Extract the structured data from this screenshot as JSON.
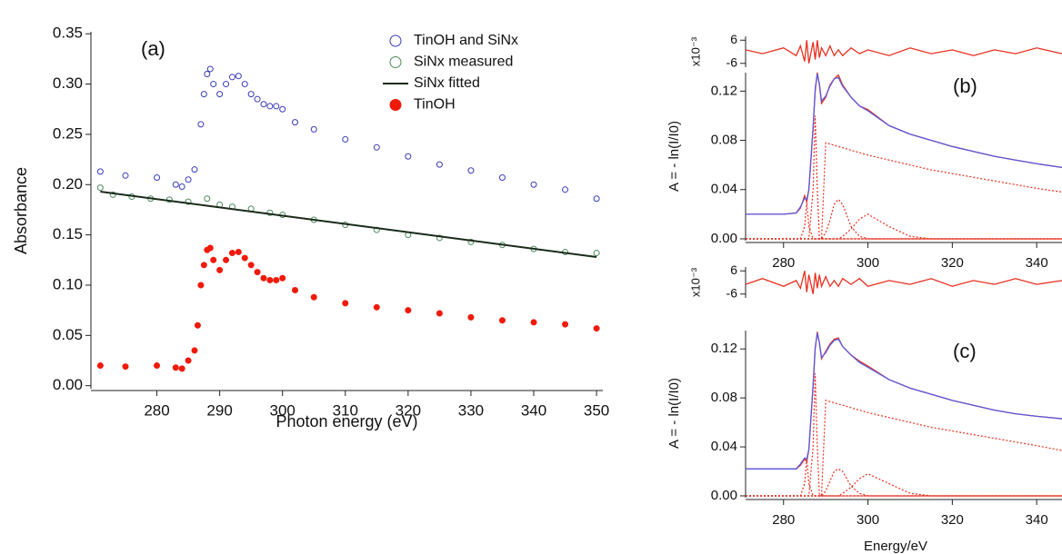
{
  "chart_data": [
    {
      "type": "scatter",
      "title": "(a)",
      "xlabel": "Photon energy (eV)",
      "ylabel": "Absorbance",
      "xlim": [
        269.5,
        351
      ],
      "ylim": [
        -0.003,
        0.352
      ],
      "xticks": [
        280,
        290,
        300,
        310,
        320,
        330,
        340,
        350
      ],
      "yticks": [
        {
          "value": 0,
          "label": "0.00"
        },
        0.05,
        {
          "value": 0.1,
          "label": "0.10"
        },
        0.15,
        {
          "value": 0.2,
          "label": "0.20"
        },
        0.25,
        {
          "value": 0.3,
          "label": "0.30"
        },
        0.35
      ],
      "legend": "top-right",
      "series": [
        {
          "name": "TinOH and SiNx",
          "color": "#3a3ab8",
          "marker": "open-circle",
          "x": [
            271,
            275,
            280,
            283,
            284,
            285,
            286,
            287,
            287.5,
            288,
            288.5,
            289,
            290,
            291,
            292,
            293,
            294,
            295,
            296,
            297,
            298,
            299,
            300,
            302,
            305,
            310,
            315,
            320,
            325,
            330,
            335,
            340,
            345,
            350
          ],
          "values": [
            0.213,
            0.209,
            0.207,
            0.2,
            0.198,
            0.205,
            0.215,
            0.26,
            0.29,
            0.31,
            0.315,
            0.3,
            0.29,
            0.3,
            0.307,
            0.308,
            0.3,
            0.29,
            0.285,
            0.28,
            0.278,
            0.278,
            0.275,
            0.262,
            0.255,
            0.245,
            0.237,
            0.228,
            0.22,
            0.214,
            0.207,
            0.2,
            0.195,
            0.186
          ]
        },
        {
          "name": "SiNx measured",
          "color": "#4e8a5e",
          "marker": "open-circle",
          "x": [
            271,
            273,
            276,
            279,
            282,
            285,
            288,
            290,
            292,
            295,
            298,
            300,
            305,
            310,
            315,
            320,
            325,
            330,
            335,
            340,
            345,
            350
          ],
          "values": [
            0.197,
            0.19,
            0.188,
            0.186,
            0.185,
            0.183,
            0.186,
            0.18,
            0.178,
            0.176,
            0.172,
            0.17,
            0.165,
            0.16,
            0.155,
            0.15,
            0.147,
            0.143,
            0.14,
            0.136,
            0.133,
            0.132
          ]
        },
        {
          "name": "SiNx fitted",
          "color": "#1a2a1a",
          "marker": "line",
          "x": [
            271,
            350
          ],
          "values": [
            0.193,
            0.128
          ]
        },
        {
          "name": "TinOH",
          "color": "#f01a0a",
          "marker": "filled-circle",
          "x": [
            271,
            275,
            280,
            283,
            284,
            285,
            286,
            286.5,
            287,
            287.5,
            288,
            288.5,
            289,
            290,
            291,
            292,
            293,
            294,
            295,
            296,
            297,
            298,
            299,
            300,
            302,
            305,
            310,
            315,
            320,
            325,
            330,
            335,
            340,
            345,
            350
          ],
          "values": [
            0.02,
            0.019,
            0.02,
            0.018,
            0.017,
            0.025,
            0.035,
            0.06,
            0.1,
            0.12,
            0.135,
            0.137,
            0.125,
            0.115,
            0.125,
            0.132,
            0.133,
            0.127,
            0.12,
            0.113,
            0.107,
            0.105,
            0.105,
            0.107,
            0.095,
            0.088,
            0.082,
            0.078,
            0.075,
            0.072,
            0.068,
            0.065,
            0.063,
            0.061,
            0.057
          ]
        }
      ]
    },
    {
      "type": "line",
      "ylabel": "x10⁻³",
      "xlim": [
        271,
        346
      ],
      "ylim": [
        -8,
        8
      ],
      "yticks": [
        6,
        -6
      ],
      "x": [
        271,
        275,
        280,
        283,
        284,
        285,
        285.5,
        286,
        287,
        287.5,
        288,
        288.5,
        289,
        290,
        291,
        292,
        293,
        294,
        296,
        298,
        300,
        305,
        310,
        315,
        320,
        325,
        330,
        335,
        340,
        346
      ],
      "series": [
        {
          "color": "#e83020",
          "style": "solid",
          "values": [
            1,
            -1,
            2,
            -2,
            3,
            -5,
            6,
            -6,
            5,
            -4,
            6,
            -3,
            2,
            -2,
            3,
            -2,
            1,
            -2,
            2,
            -1,
            1,
            -2,
            2,
            -1,
            1,
            -2,
            1,
            -1,
            2,
            -1
          ]
        }
      ]
    },
    {
      "type": "line",
      "title": "(b)",
      "ylabel": "A = - ln(I/I0)",
      "xlim": [
        271,
        346
      ],
      "ylim": [
        -0.0015,
        0.135
      ],
      "xticks": [
        280,
        300,
        320,
        340
      ],
      "yticks": [
        {
          "value": 0,
          "label": "0.00"
        },
        0.04,
        0.08,
        0.12
      ],
      "x": [
        271,
        275,
        280,
        283,
        284,
        285,
        285.5,
        286,
        287,
        287.5,
        288,
        288.5,
        289,
        290,
        291,
        292,
        293,
        294,
        296,
        298,
        300,
        305,
        310,
        315,
        320,
        325,
        330,
        335,
        340,
        346
      ],
      "series": [
        {
          "color": "#e8301f",
          "style": "dotted",
          "values": [
            0,
            0,
            0,
            0,
            0,
            0,
            0,
            0,
            0,
            0,
            0,
            0,
            0,
            0.078,
            0.077,
            0.076,
            0.075,
            0.074,
            0.072,
            0.07,
            0.068,
            0.064,
            0.06,
            0.056,
            0.053,
            0.05,
            0.047,
            0.044,
            0.041,
            0.038
          ]
        },
        {
          "color": "#e8301f",
          "style": "dotted",
          "values": [
            0,
            0,
            0,
            0,
            0,
            0.01,
            0.03,
            0.01,
            0,
            0,
            0,
            0,
            0,
            0,
            0,
            0,
            0,
            0,
            0,
            0,
            0,
            0,
            0,
            0,
            0,
            0,
            0,
            0,
            0,
            0
          ]
        },
        {
          "color": "#e8301f",
          "style": "dotted",
          "values": [
            0,
            0,
            0,
            0,
            0,
            0,
            0,
            0,
            0.04,
            0.1,
            0.04,
            0,
            0,
            0,
            0,
            0,
            0,
            0,
            0,
            0,
            0,
            0,
            0,
            0,
            0,
            0,
            0,
            0,
            0,
            0
          ]
        },
        {
          "color": "#e8301f",
          "style": "dotted",
          "values": [
            0,
            0,
            0,
            0,
            0,
            0,
            0,
            0,
            0,
            0,
            0,
            0,
            0,
            0.005,
            0.015,
            0.028,
            0.032,
            0.028,
            0.01,
            0.002,
            0,
            0,
            0,
            0,
            0,
            0,
            0,
            0,
            0,
            0
          ]
        },
        {
          "color": "#e8301f",
          "style": "dotted",
          "values": [
            0,
            0,
            0,
            0,
            0,
            0,
            0,
            0,
            0,
            0,
            0,
            0,
            0,
            0,
            0,
            0,
            0,
            0.002,
            0.008,
            0.016,
            0.02,
            0.01,
            0.002,
            0,
            0,
            0,
            0,
            0,
            0,
            0
          ]
        },
        {
          "color": "#e83020",
          "style": "solid",
          "values": [
            0.02,
            0.02,
            0.02,
            0.021,
            0.025,
            0.035,
            0.03,
            0.04,
            0.09,
            0.12,
            0.135,
            0.125,
            0.11,
            0.115,
            0.125,
            0.13,
            0.133,
            0.125,
            0.115,
            0.108,
            0.105,
            0.092,
            0.085,
            0.08,
            0.075,
            0.071,
            0.067,
            0.064,
            0.061,
            0.058
          ]
        },
        {
          "color": "#5a5ae0",
          "style": "solid",
          "values": [
            0.02,
            0.02,
            0.02,
            0.021,
            0.026,
            0.033,
            0.032,
            0.04,
            0.09,
            0.122,
            0.134,
            0.126,
            0.112,
            0.116,
            0.124,
            0.13,
            0.131,
            0.124,
            0.115,
            0.108,
            0.104,
            0.092,
            0.085,
            0.08,
            0.075,
            0.071,
            0.067,
            0.064,
            0.061,
            0.058
          ]
        }
      ]
    },
    {
      "type": "line",
      "ylabel": "x10⁻³",
      "xlim": [
        271,
        346
      ],
      "ylim": [
        -8,
        8
      ],
      "yticks": [
        6,
        -6
      ],
      "x": [
        271,
        275,
        280,
        283,
        284,
        285,
        285.5,
        286,
        287,
        287.5,
        288,
        288.5,
        289,
        290,
        291,
        292,
        293,
        294,
        296,
        298,
        300,
        305,
        310,
        315,
        320,
        325,
        330,
        335,
        340,
        346
      ],
      "series": [
        {
          "color": "#e83020",
          "style": "solid",
          "values": [
            -1,
            2,
            -2,
            1,
            -3,
            6,
            -5,
            4,
            -6,
            5,
            -3,
            4,
            -2,
            3,
            -2,
            1,
            -2,
            2,
            -1,
            2,
            -2,
            1,
            -1,
            2,
            -2,
            1,
            -1,
            2,
            -1,
            1
          ]
        }
      ]
    },
    {
      "type": "line",
      "title": "(c)",
      "ylabel": "A = - ln(I/I0)",
      "xlabel": "Energy/eV",
      "xlim": [
        271,
        346
      ],
      "ylim": [
        -0.0015,
        0.135
      ],
      "xticks": [
        280,
        300,
        320,
        340
      ],
      "yticks": [
        {
          "value": 0,
          "label": "0.00"
        },
        0.04,
        0.08,
        0.12
      ],
      "x": [
        271,
        275,
        280,
        283,
        284,
        285,
        285.5,
        286,
        287,
        287.5,
        288,
        288.5,
        289,
        290,
        291,
        292,
        293,
        294,
        296,
        298,
        300,
        305,
        310,
        315,
        320,
        325,
        330,
        335,
        340,
        346
      ],
      "series": [
        {
          "color": "#e8301f",
          "style": "dotted",
          "values": [
            0,
            0,
            0,
            0,
            0,
            0,
            0,
            0,
            0,
            0,
            0,
            0,
            0,
            0.078,
            0.077,
            0.076,
            0.075,
            0.074,
            0.072,
            0.07,
            0.068,
            0.064,
            0.06,
            0.056,
            0.053,
            0.05,
            0.047,
            0.044,
            0.041,
            0.037
          ]
        },
        {
          "color": "#e8301f",
          "style": "dotted",
          "values": [
            0,
            0,
            0,
            0,
            0,
            0.01,
            0.03,
            0.01,
            0,
            0,
            0,
            0,
            0,
            0,
            0,
            0,
            0,
            0,
            0,
            0,
            0,
            0,
            0,
            0,
            0,
            0,
            0,
            0,
            0,
            0
          ]
        },
        {
          "color": "#e8301f",
          "style": "dotted",
          "values": [
            0,
            0,
            0,
            0,
            0,
            0,
            0,
            0,
            0.04,
            0.1,
            0.04,
            0,
            0,
            0,
            0,
            0,
            0,
            0,
            0,
            0,
            0,
            0,
            0,
            0,
            0,
            0,
            0,
            0,
            0,
            0
          ]
        },
        {
          "color": "#e8301f",
          "style": "dotted",
          "values": [
            0,
            0,
            0,
            0,
            0,
            0,
            0,
            0,
            0,
            0,
            0,
            0,
            0,
            0.004,
            0.012,
            0.02,
            0.022,
            0.02,
            0.008,
            0.002,
            0,
            0,
            0,
            0,
            0,
            0,
            0,
            0,
            0,
            0
          ]
        },
        {
          "color": "#e8301f",
          "style": "dotted",
          "values": [
            0,
            0,
            0,
            0,
            0,
            0,
            0,
            0,
            0,
            0,
            0,
            0,
            0,
            0,
            0,
            0,
            0,
            0.002,
            0.007,
            0.014,
            0.018,
            0.01,
            0.002,
            0,
            0,
            0,
            0,
            0,
            0,
            0
          ]
        },
        {
          "color": "#e83020",
          "style": "solid",
          "values": [
            0.022,
            0.022,
            0.022,
            0.022,
            0.025,
            0.03,
            0.028,
            0.038,
            0.09,
            0.12,
            0.134,
            0.125,
            0.112,
            0.118,
            0.124,
            0.128,
            0.129,
            0.122,
            0.115,
            0.11,
            0.106,
            0.095,
            0.088,
            0.083,
            0.078,
            0.074,
            0.07,
            0.067,
            0.065,
            0.063
          ]
        },
        {
          "color": "#5a5ae0",
          "style": "solid",
          "values": [
            0.022,
            0.022,
            0.022,
            0.022,
            0.026,
            0.031,
            0.03,
            0.038,
            0.09,
            0.121,
            0.133,
            0.125,
            0.113,
            0.117,
            0.123,
            0.127,
            0.128,
            0.122,
            0.115,
            0.109,
            0.105,
            0.095,
            0.088,
            0.083,
            0.078,
            0.074,
            0.07,
            0.067,
            0.065,
            0.063
          ]
        }
      ]
    }
  ]
}
